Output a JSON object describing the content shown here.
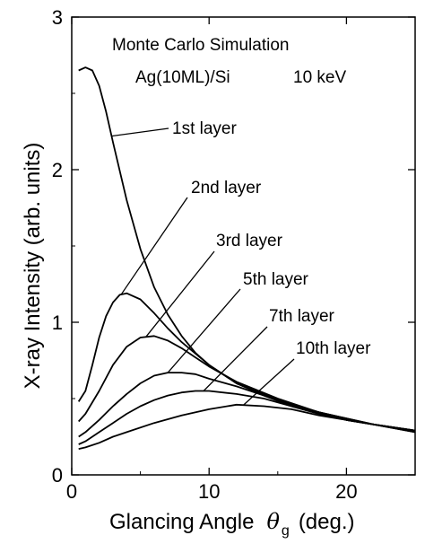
{
  "chart_data": {
    "type": "line",
    "title": "",
    "annotations": [
      "Monte Carlo Simulation",
      "Ag(10ML)/Si",
      "10 keV"
    ],
    "xlabel": "Glancing Angle",
    "xlabel_symbol": "θ",
    "xlabel_subscript": "g",
    "xlabel_unit": "(deg.)",
    "ylabel": "X-ray Intensity (arb. units)",
    "xlim": [
      0,
      25
    ],
    "ylim": [
      0,
      3
    ],
    "xticks": [
      0,
      10,
      20
    ],
    "yticks": [
      0,
      1,
      2,
      3
    ],
    "grid": false,
    "legend": "none",
    "series": [
      {
        "name": "1st layer",
        "x": [
          0.5,
          1.0,
          1.5,
          2.0,
          2.5,
          3.0,
          4.0,
          5.0,
          6.0,
          7.0,
          8.0,
          9.0,
          10.0,
          12.0,
          14.0,
          16.0,
          18.0,
          20.0,
          22.0,
          25.0
        ],
        "y": [
          2.65,
          2.67,
          2.65,
          2.55,
          2.38,
          2.18,
          1.8,
          1.48,
          1.23,
          1.05,
          0.91,
          0.8,
          0.72,
          0.6,
          0.52,
          0.45,
          0.4,
          0.36,
          0.33,
          0.28
        ]
      },
      {
        "name": "2nd layer",
        "x": [
          0.5,
          1.0,
          1.5,
          2.0,
          2.5,
          3.0,
          3.5,
          4.0,
          5.0,
          6.0,
          7.0,
          8.0,
          10.0,
          12.0,
          15.0,
          18.0,
          20.0,
          22.0,
          25.0
        ],
        "y": [
          0.48,
          0.55,
          0.72,
          0.9,
          1.04,
          1.13,
          1.18,
          1.19,
          1.15,
          1.06,
          0.96,
          0.87,
          0.72,
          0.6,
          0.49,
          0.41,
          0.36,
          0.33,
          0.29
        ]
      },
      {
        "name": "3rd layer",
        "x": [
          0.5,
          1.0,
          2.0,
          3.0,
          4.0,
          5.0,
          6.0,
          7.0,
          8.0,
          9.0,
          10.0,
          12.0,
          15.0,
          18.0,
          20.0,
          22.0,
          25.0
        ],
        "y": [
          0.35,
          0.4,
          0.55,
          0.72,
          0.84,
          0.9,
          0.91,
          0.88,
          0.83,
          0.77,
          0.71,
          0.61,
          0.5,
          0.41,
          0.37,
          0.33,
          0.29
        ]
      },
      {
        "name": "5th layer",
        "x": [
          0.5,
          1.0,
          2.0,
          3.0,
          4.0,
          5.0,
          6.0,
          7.0,
          8.0,
          9.0,
          10.0,
          12.0,
          14.0,
          16.0,
          18.0,
          20.0,
          22.0,
          25.0
        ],
        "y": [
          0.25,
          0.28,
          0.36,
          0.45,
          0.53,
          0.6,
          0.65,
          0.67,
          0.67,
          0.66,
          0.63,
          0.58,
          0.52,
          0.46,
          0.41,
          0.37,
          0.33,
          0.29
        ]
      },
      {
        "name": "7th layer",
        "x": [
          0.5,
          1.0,
          2.0,
          3.0,
          4.0,
          5.0,
          6.0,
          7.0,
          8.0,
          9.0,
          10.0,
          12.0,
          14.0,
          16.0,
          18.0,
          20.0,
          22.0,
          25.0
        ],
        "y": [
          0.2,
          0.22,
          0.28,
          0.34,
          0.4,
          0.45,
          0.49,
          0.52,
          0.54,
          0.55,
          0.55,
          0.53,
          0.5,
          0.45,
          0.4,
          0.36,
          0.33,
          0.29
        ]
      },
      {
        "name": "10th layer",
        "x": [
          0.5,
          1.0,
          2.0,
          3.0,
          4.0,
          6.0,
          8.0,
          10.0,
          12.0,
          14.0,
          16.0,
          18.0,
          20.0,
          22.0,
          25.0
        ],
        "y": [
          0.17,
          0.18,
          0.21,
          0.25,
          0.28,
          0.34,
          0.39,
          0.43,
          0.46,
          0.45,
          0.43,
          0.39,
          0.36,
          0.33,
          0.28
        ]
      }
    ]
  }
}
